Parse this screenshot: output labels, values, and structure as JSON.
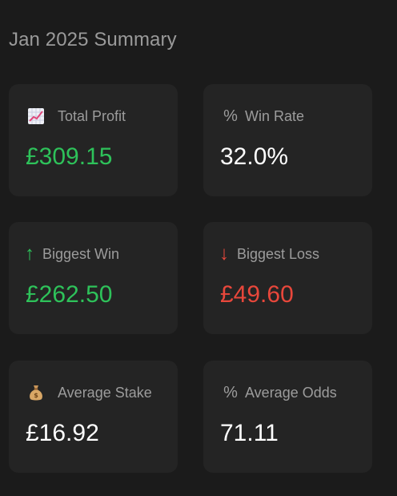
{
  "summary": {
    "title": "Jan 2025 Summary"
  },
  "cards": {
    "total_profit": {
      "icon": "chart-increasing-icon",
      "label": "Total Profit",
      "value": "£309.15",
      "value_color": "#2ec25a"
    },
    "win_rate": {
      "icon": "percent-icon",
      "icon_glyph": "%",
      "label": "Win Rate",
      "value": "32.0%",
      "value_color": "#ffffff"
    },
    "biggest_win": {
      "icon": "arrow-up-icon",
      "icon_glyph": "↑",
      "label": "Biggest Win",
      "value": "£262.50",
      "value_color": "#2ec25a"
    },
    "biggest_loss": {
      "icon": "arrow-down-icon",
      "icon_glyph": "↓",
      "label": "Biggest Loss",
      "value": "£49.60",
      "value_color": "#e8473b"
    },
    "average_stake": {
      "icon": "money-bag-icon",
      "label": "Average Stake",
      "value": "£16.92",
      "value_color": "#ffffff"
    },
    "average_odds": {
      "icon": "percent-icon",
      "icon_glyph": "%",
      "label": "Average Odds",
      "value": "71.11",
      "value_color": "#ffffff"
    }
  },
  "colors": {
    "background": "#1b1b1b",
    "card": "#242424",
    "positive": "#2ec25a",
    "negative": "#e8473b",
    "muted_text": "#9c9c9c"
  }
}
